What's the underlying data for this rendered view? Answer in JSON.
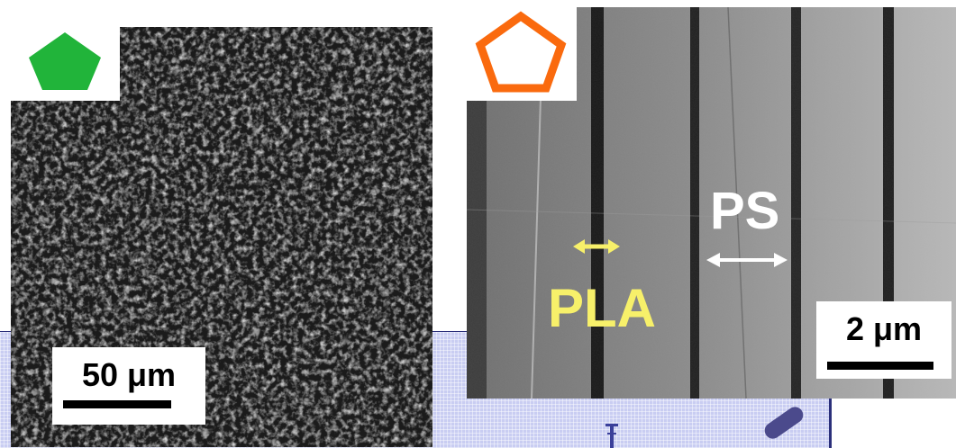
{
  "left_panel": {
    "scale_label": "50 μm",
    "marker_shape": "filled-pentagon",
    "marker_color": "#21b43a"
  },
  "right_panel": {
    "scale_label": "2 μm",
    "marker_shape": "outline-pentagon",
    "marker_color": "#fa6a0e",
    "labels": {
      "pla": "PLA",
      "ps": "PS"
    },
    "arrow_colors": {
      "pla": "#f7f06a",
      "ps": "#ffffff"
    }
  }
}
